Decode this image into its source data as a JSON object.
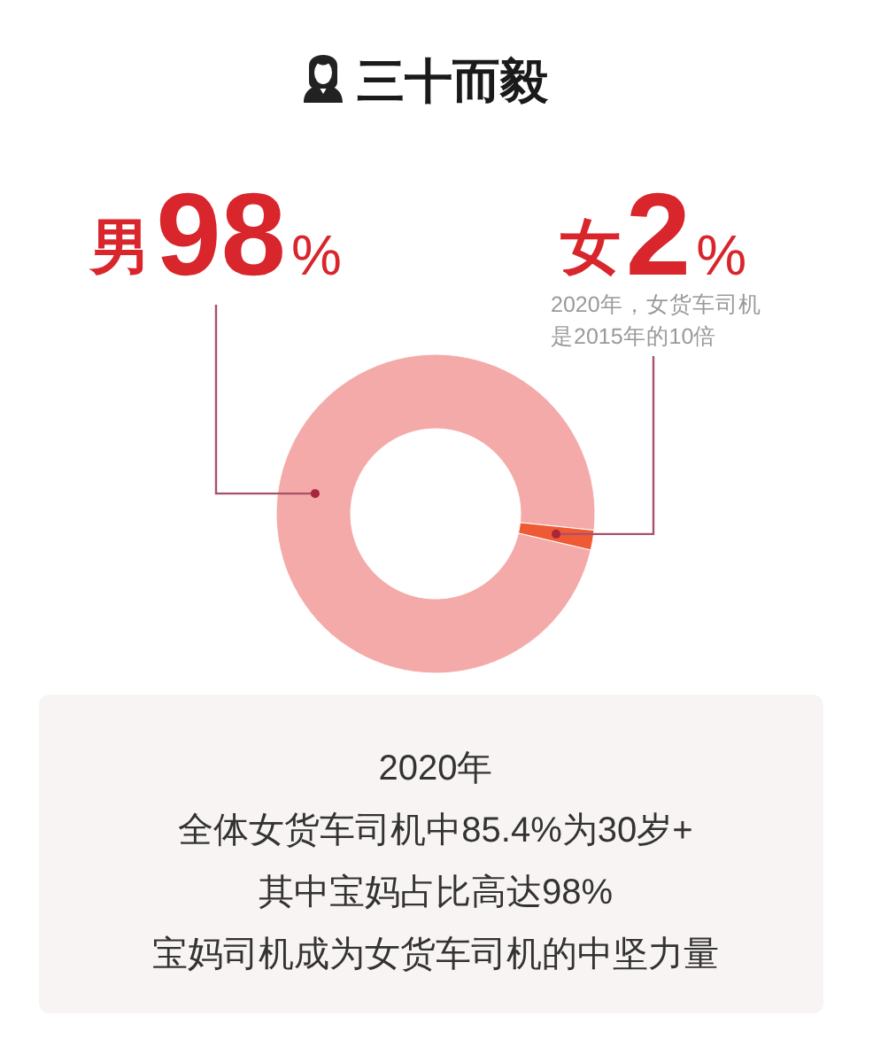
{
  "chart_data": {
    "type": "donut",
    "title": "三十而毅",
    "categories": [
      "男",
      "女"
    ],
    "values": [
      98,
      2
    ],
    "colors": [
      "#f4aaa8",
      "#ef5a35"
    ],
    "value_labels": [
      "98%",
      "2%"
    ],
    "annotations": [
      "2020年，女货车司机是2015年的10倍",
      "2020年",
      "全体女货车司机中85.4%为30岁+",
      "其中宝妈占比高达98%",
      "宝妈司机成为女货车司机的中坚力量"
    ]
  }
}
